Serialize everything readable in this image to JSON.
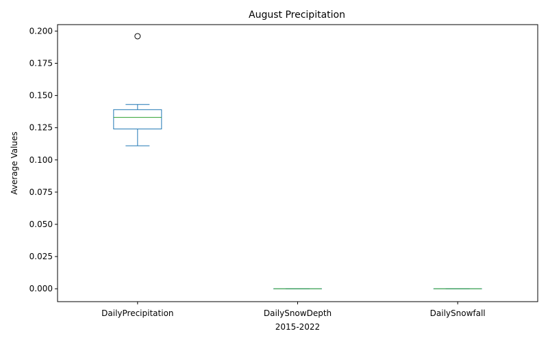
{
  "chart_data": {
    "type": "box",
    "title": "August Precipitation",
    "xlabel": "2015-2022",
    "ylabel": "Average Values",
    "ylim": [
      -0.01,
      0.205
    ],
    "yticks": [
      "0.000",
      "0.025",
      "0.050",
      "0.075",
      "0.100",
      "0.125",
      "0.150",
      "0.175",
      "0.200"
    ],
    "categories": [
      "DailyPrecipitation",
      "DailySnowDepth",
      "DailySnowfall"
    ],
    "boxes": [
      {
        "name": "DailyPrecipitation",
        "whisker_low": 0.111,
        "q1": 0.124,
        "median": 0.133,
        "q3": 0.139,
        "whisker_high": 0.143,
        "outliers": [
          0.196
        ]
      },
      {
        "name": "DailySnowDepth",
        "whisker_low": 0.0,
        "q1": 0.0,
        "median": 0.0,
        "q3": 0.0,
        "whisker_high": 0.0,
        "outliers": []
      },
      {
        "name": "DailySnowfall",
        "whisker_low": 0.0,
        "q1": 0.0,
        "median": 0.0,
        "q3": 0.0,
        "whisker_high": 0.0,
        "outliers": []
      }
    ],
    "colors": {
      "box": "#1f77b4",
      "median": "#2ca02c",
      "outlier": "#000000"
    },
    "grid": false,
    "legend": "none"
  }
}
